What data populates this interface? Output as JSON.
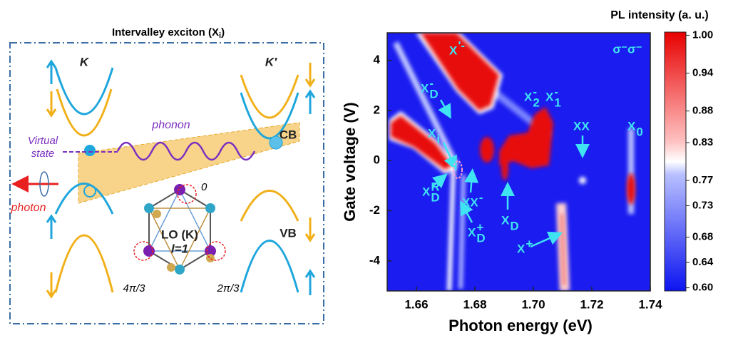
{
  "left_panel": {
    "title": {
      "text": "Intervalley exciton (X",
      "sub": "i",
      "close": ")"
    },
    "labels": {
      "k": "K",
      "k_prime": "K′",
      "virtual": "Virtual",
      "state": "state",
      "phonon": "phonon",
      "photon": "photon",
      "cb": "CB",
      "vb": "VB",
      "mode": "LO (K)",
      "l": "l=1",
      "phase0": "0",
      "phase2": "2π/3",
      "phase4": "4π/3"
    }
  },
  "right_panel": {
    "x_label": "Photon energy (eV)",
    "y_label": "Gate voltage (V)",
    "xlim": [
      1.65,
      1.74
    ],
    "ylim": [
      -5.2,
      5.1
    ],
    "xticks": [
      1.66,
      1.68,
      1.7,
      {
        "value": 1.7,
        "label": "1.70"
      },
      1.72,
      1.74
    ],
    "yticks": [
      -4,
      -2,
      0,
      2,
      4
    ],
    "polarization": "σ⁻σ⁻",
    "colorbar": {
      "title": "PL intensity (a. u.)",
      "lim": [
        0.595,
        1.005
      ],
      "ticks": [
        {
          "value": 1,
          "label": "1.00"
        },
        0.94,
        0.88,
        0.83,
        0.77,
        0.73,
        0.68,
        0.64,
        {
          "value": 0.6,
          "label": "0.60"
        }
      ]
    },
    "annotations": [
      {
        "base": "X",
        "sup": "'-"
      },
      {
        "base": "X",
        "sub": "D",
        "sup": "-"
      },
      {
        "base": "X",
        "sub": "2",
        "sup": "-"
      },
      {
        "base": "X",
        "sub": "1",
        "sup": "-"
      },
      {
        "base": "X",
        "sub": "i"
      },
      {
        "base": "XX"
      },
      {
        "base": "X",
        "sub": "0"
      },
      {
        "base": "X",
        "sub": "D",
        "sup": "R"
      },
      {
        "base": "XX",
        "sup": "-"
      },
      {
        "base": "X",
        "sub": "D",
        "sup": "+"
      },
      {
        "base": "X",
        "sub": "D"
      },
      {
        "base": "X",
        "sup": "+"
      }
    ]
  }
}
